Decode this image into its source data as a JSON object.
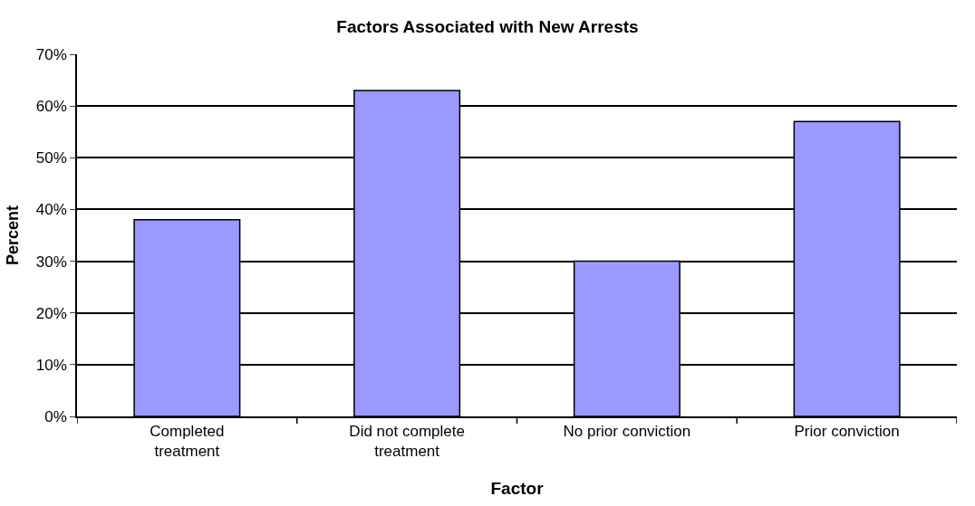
{
  "chart_data": {
    "type": "bar",
    "title": "Factors Associated with New Arrests",
    "xlabel": "Factor",
    "ylabel": "Percent",
    "categories": [
      "Completed\ntreatment",
      "Did not complete\ntreatment",
      "No prior conviction",
      "Prior conviction"
    ],
    "values": [
      38,
      63,
      30,
      57
    ],
    "color": "#9999ff",
    "ylim": [
      0,
      70
    ],
    "yticks": [
      {
        "value": 0,
        "label": "0%"
      },
      {
        "value": 10,
        "label": "10%"
      },
      {
        "value": 20,
        "label": "20%"
      },
      {
        "value": 30,
        "label": "30%"
      },
      {
        "value": 40,
        "label": "40%"
      },
      {
        "value": 50,
        "label": "50%"
      },
      {
        "value": 60,
        "label": "60%"
      },
      {
        "value": 70,
        "label": "70%"
      }
    ],
    "grid": "y",
    "legend": false
  }
}
